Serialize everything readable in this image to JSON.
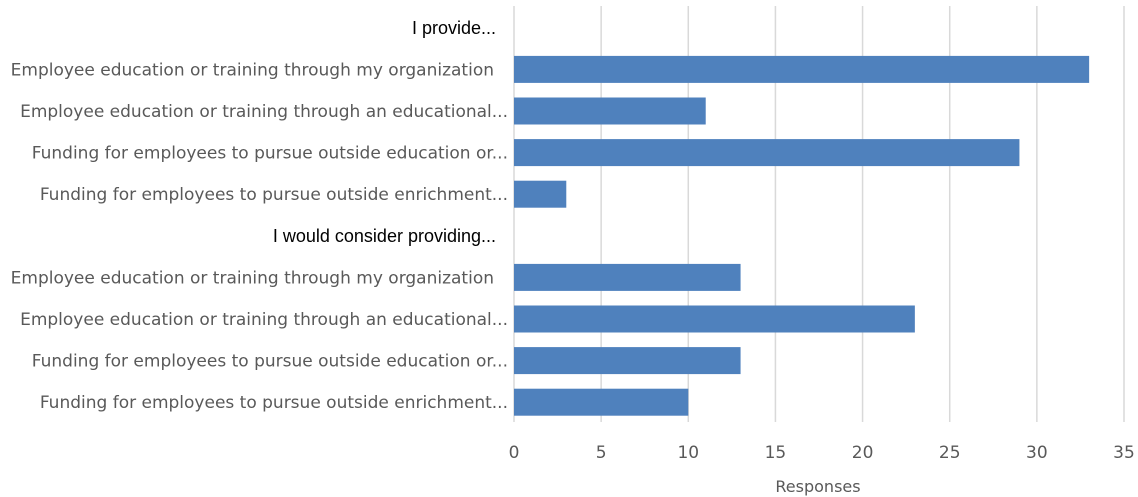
{
  "chart_data": {
    "type": "bar",
    "orientation": "horizontal",
    "xlabel": "Responses",
    "xlim": [
      0,
      35
    ],
    "x_ticks": [
      0,
      5,
      10,
      15,
      20,
      25,
      30,
      35
    ],
    "grid": true,
    "bar_color": "#4f81bd",
    "rows": [
      {
        "kind": "group",
        "label": "I provide..."
      },
      {
        "kind": "bar",
        "label": "Employee education or training through my organization",
        "value": 33
      },
      {
        "kind": "bar",
        "label": "Employee education or training through an educational...",
        "value": 11
      },
      {
        "kind": "bar",
        "label": "Funding for employees to pursue outside education or...",
        "value": 29
      },
      {
        "kind": "bar",
        "label": "Funding for employees to pursue outside enrichment...",
        "value": 3
      },
      {
        "kind": "group",
        "label": "I would consider providing..."
      },
      {
        "kind": "bar",
        "label": "Employee education or training through my organization",
        "value": 13
      },
      {
        "kind": "bar",
        "label": "Employee education or training through an educational...",
        "value": 23
      },
      {
        "kind": "bar",
        "label": "Funding for employees to pursue outside education or...",
        "value": 13
      },
      {
        "kind": "bar",
        "label": "Funding for employees to pursue outside enrichment...",
        "value": 10
      }
    ]
  }
}
